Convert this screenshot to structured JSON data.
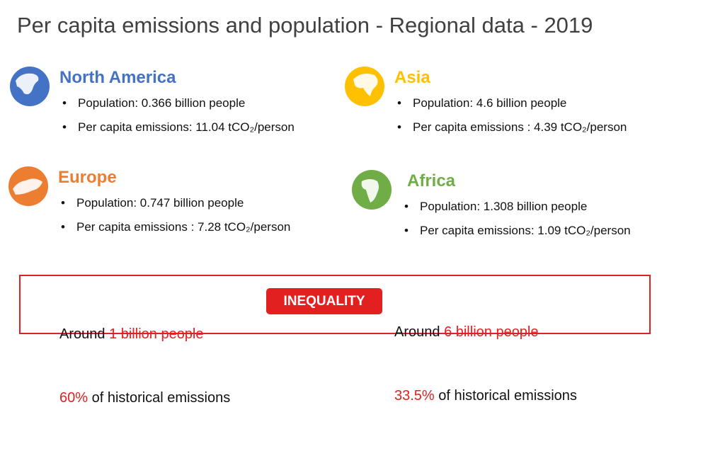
{
  "title": "Per capita emissions and population - Regional data - 2019",
  "regions": [
    {
      "name": "North America",
      "color": "#4472c4",
      "bullets": [
        "Population: 0.366 billion people",
        "Per capita emissions: 11.04 tCO₂/person"
      ]
    },
    {
      "name": "Asia",
      "color": "#ffc000",
      "bullets": [
        "Population: 4.6 billion people",
        "Per capita emissions : 4.39 tCO₂/person"
      ]
    },
    {
      "name": "Europe",
      "color": "#ed7d31",
      "bullets": [
        "Population: 0.747 billion people",
        "Per capita emissions : 7.28 tCO₂/person"
      ]
    },
    {
      "name": "Africa",
      "color": "#70ad47",
      "bullets": [
        "Population: 1.308 billion people",
        "Per capita emissions: 1.09 tCO₂/person"
      ]
    }
  ],
  "summary": {
    "left": {
      "line1": [
        "Around ",
        "1 billion people"
      ],
      "line2": [
        "60%",
        " of historical emissions"
      ]
    },
    "badge": "INEQUALITY",
    "right": {
      "line1": [
        "Around ",
        "6 billion people"
      ],
      "line2": [
        "33.5%",
        " of historical emissions"
      ]
    }
  }
}
